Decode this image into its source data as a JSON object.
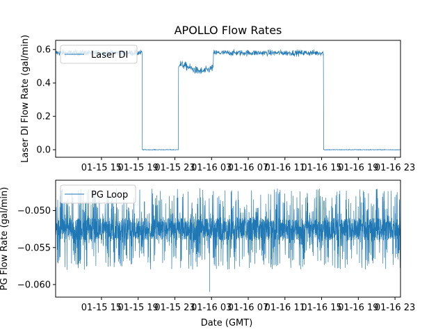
{
  "colors": {
    "series": "#1f77b4",
    "axis": "#000000",
    "background": "#ffffff",
    "legend_border": "#cccccc"
  },
  "chart_data": [
    {
      "type": "line",
      "title": "APOLLO Flow Rates",
      "xlabel": "",
      "ylabel": "Laser DI Flow Rate (gal/min)",
      "ylim": [
        -0.045,
        0.655
      ],
      "yticks": [
        0.0,
        0.2,
        0.4,
        0.6
      ],
      "ytick_labels": [
        "0.0",
        "0.2",
        "0.4",
        "0.6"
      ],
      "xlim_hours": [
        10.0,
        47.6
      ],
      "xticks_hours": [
        15,
        19,
        23,
        27,
        31,
        35,
        39,
        43,
        47
      ],
      "xtick_labels": [
        "01-15 15",
        "01-15 19",
        "01-15 23",
        "01-16 03",
        "01-16 07",
        "01-16 11",
        "01-16 15",
        "01-16 19",
        "01-16 23"
      ],
      "legend": {
        "location": "upper-left",
        "entries": [
          "Laser DI"
        ]
      },
      "series": [
        {
          "name": "Laser DI",
          "segments": [
            {
              "start": 10.0,
              "end": 19.45,
              "level": 0.58,
              "noise": 0.015
            },
            {
              "start": 19.45,
              "end": 23.4,
              "level": 0.0,
              "noise": 0.002
            },
            {
              "start": 23.4,
              "end": 27.2,
              "level": 0.52,
              "noise": 0.02,
              "dip": 0.05
            },
            {
              "start": 27.2,
              "end": 39.2,
              "level": 0.58,
              "noise": 0.015
            },
            {
              "start": 39.2,
              "end": 47.6,
              "level": 0.0,
              "noise": 0.002
            }
          ]
        }
      ]
    },
    {
      "type": "line",
      "title": "",
      "xlabel": "Date (GMT)",
      "ylabel": "PG Flow Rate (gal/min)",
      "ylim": [
        -0.0617,
        -0.0459
      ],
      "yticks": [
        -0.06,
        -0.055,
        -0.05
      ],
      "ytick_labels": [
        "−0.060",
        "−0.055",
        "−0.050"
      ],
      "xlim_hours": [
        10.0,
        47.6
      ],
      "xticks_hours": [
        15,
        19,
        23,
        27,
        31,
        35,
        39,
        43,
        47
      ],
      "xtick_labels": [
        "01-15 15",
        "01-15 19",
        "01-15 23",
        "01-16 03",
        "01-16 07",
        "01-16 11",
        "01-16 15",
        "01-16 19",
        "01-16 23"
      ],
      "legend": {
        "location": "upper-left",
        "entries": [
          "PG Loop"
        ]
      },
      "series": [
        {
          "name": "PG Loop",
          "band": [
            -0.054,
            -0.051
          ],
          "spike_range": [
            -0.058,
            -0.047
          ],
          "extremes": [
            {
              "x": 26.8,
              "y": -0.061
            },
            {
              "x": 47.6,
              "y": -0.0465
            }
          ]
        }
      ]
    }
  ]
}
